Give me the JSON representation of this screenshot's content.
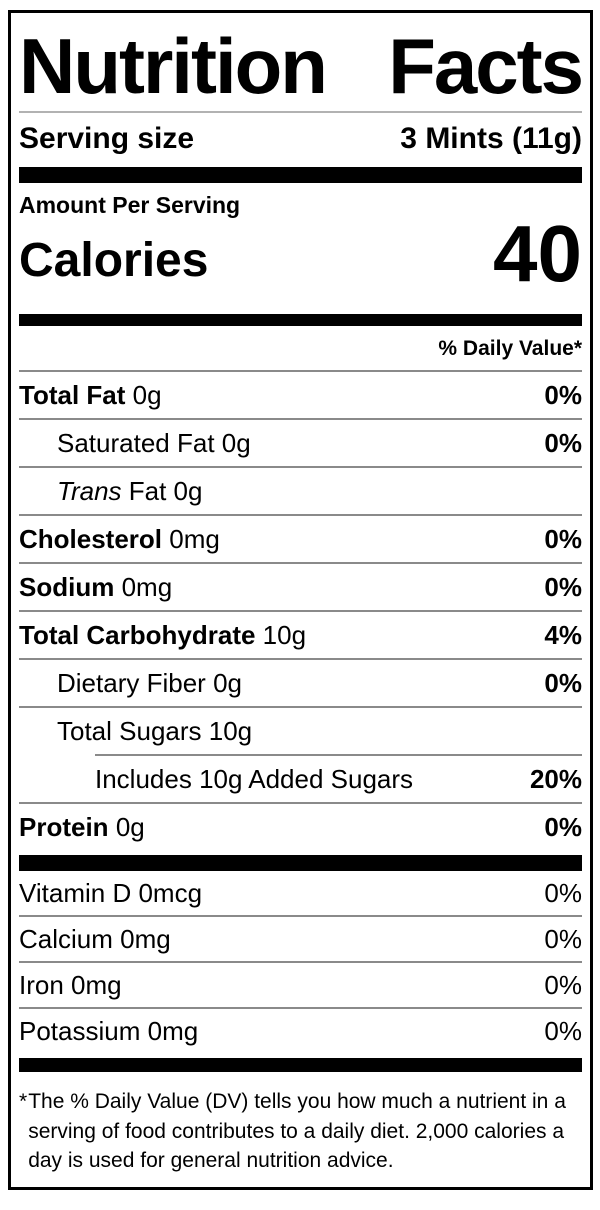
{
  "nutrition_label": {
    "title": {
      "left": "Nutrition",
      "right": "Facts"
    },
    "serving_size": {
      "label": "Serving size",
      "value": "3 Mints (11g)"
    },
    "calories_section": {
      "header": "Amount Per Serving",
      "label": "Calories",
      "value": "40"
    },
    "daily_value_header": "% Daily Value*",
    "nutrients": [
      {
        "name": "Total Fat",
        "amount": "0g",
        "dv": "0%"
      },
      {
        "name": "Saturated Fat",
        "amount": "0g",
        "dv": "0%"
      },
      {
        "name": "Trans",
        "amount": "Fat 0g",
        "dv": ""
      },
      {
        "name": "Cholesterol",
        "amount": "0mg",
        "dv": "0%"
      },
      {
        "name": "Sodium",
        "amount": "0mg",
        "dv": "0%"
      },
      {
        "name": "Total Carbohydrate",
        "amount": "10g",
        "dv": "4%"
      },
      {
        "name": "Dietary Fiber",
        "amount": "0g",
        "dv": "0%"
      },
      {
        "name": "Total Sugars",
        "amount": "10g",
        "dv": ""
      },
      {
        "name": "Includes 10g Added Sugars",
        "amount": "",
        "dv": "20%"
      },
      {
        "name": "Protein",
        "amount": "0g",
        "dv": "0%"
      }
    ],
    "micronutrients": [
      {
        "name": "Vitamin D",
        "amount": "0mcg",
        "dv": "0%"
      },
      {
        "name": "Calcium",
        "amount": "0mg",
        "dv": "0%"
      },
      {
        "name": "Iron",
        "amount": "0mg",
        "dv": "0%"
      },
      {
        "name": "Potassium",
        "amount": "0mg",
        "dv": "0%"
      }
    ],
    "footnote": {
      "marker": "*",
      "text": "The % Daily Value (DV) tells you how much a nutrient in a serving of food contributes to a daily diet. 2,000 calories a day is used for general nutrition advice."
    },
    "colors": {
      "text": "#000000",
      "background": "#ffffff",
      "bar": "#000000",
      "divider": "#8a8a8a"
    }
  }
}
